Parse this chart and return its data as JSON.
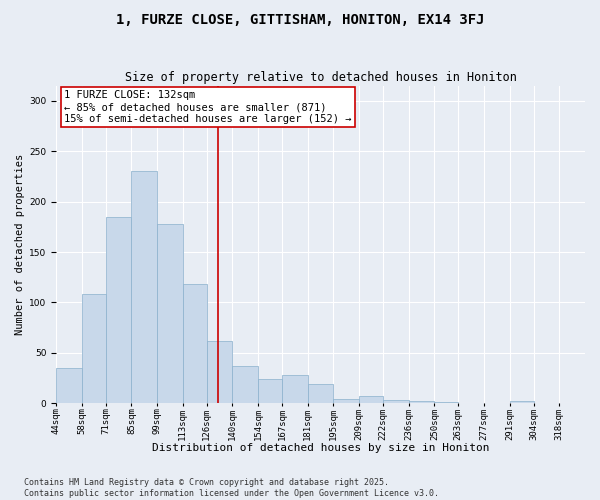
{
  "title": "1, FURZE CLOSE, GITTISHAM, HONITON, EX14 3FJ",
  "subtitle": "Size of property relative to detached houses in Honiton",
  "xlabel": "Distribution of detached houses by size in Honiton",
  "ylabel": "Number of detached properties",
  "bar_color": "#c8d8ea",
  "bar_edge_color": "#8ab0cc",
  "background_color": "#e8edf4",
  "grid_color": "#ffffff",
  "bins": [
    "44sqm",
    "58sqm",
    "71sqm",
    "85sqm",
    "99sqm",
    "113sqm",
    "126sqm",
    "140sqm",
    "154sqm",
    "167sqm",
    "181sqm",
    "195sqm",
    "209sqm",
    "222sqm",
    "236sqm",
    "250sqm",
    "263sqm",
    "277sqm",
    "291sqm",
    "304sqm",
    "318sqm"
  ],
  "bin_edges": [
    44,
    58,
    71,
    85,
    99,
    113,
    126,
    140,
    154,
    167,
    181,
    195,
    209,
    222,
    236,
    250,
    263,
    277,
    291,
    304,
    318
  ],
  "values": [
    35,
    108,
    185,
    230,
    178,
    118,
    62,
    37,
    24,
    28,
    19,
    4,
    7,
    3,
    2,
    1,
    0,
    0,
    2,
    0,
    0
  ],
  "property_size": 132,
  "annotation_line1": "1 FURZE CLOSE: 132sqm",
  "annotation_line2": "← 85% of detached houses are smaller (871)",
  "annotation_line3": "15% of semi-detached houses are larger (152) →",
  "vline_color": "#cc0000",
  "annotation_box_color": "#ffffff",
  "annotation_box_edge": "#cc0000",
  "ylim": [
    0,
    315
  ],
  "yticks": [
    0,
    50,
    100,
    150,
    200,
    250,
    300
  ],
  "footer": "Contains HM Land Registry data © Crown copyright and database right 2025.\nContains public sector information licensed under the Open Government Licence v3.0.",
  "title_fontsize": 10,
  "subtitle_fontsize": 8.5,
  "xlabel_fontsize": 8,
  "ylabel_fontsize": 7.5,
  "tick_fontsize": 6.5,
  "annotation_fontsize": 7.5,
  "footer_fontsize": 6
}
